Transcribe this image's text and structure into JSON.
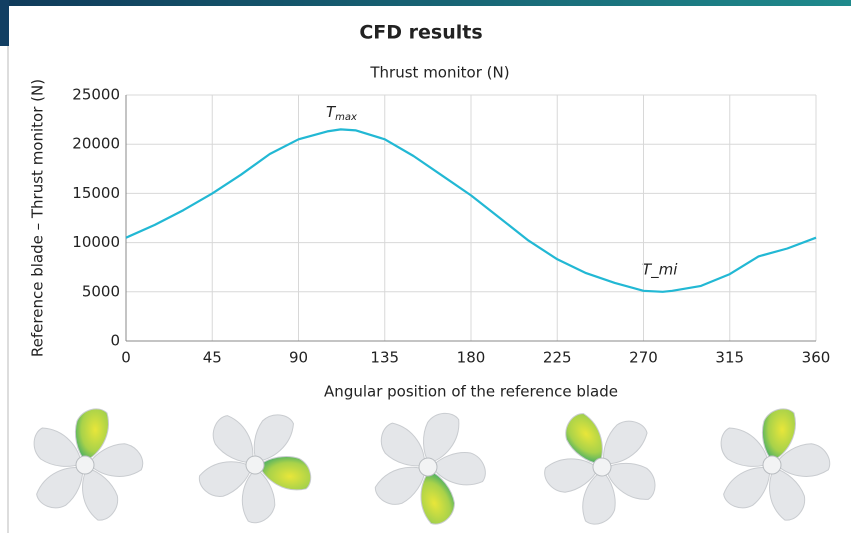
{
  "chart_data": {
    "type": "line",
    "title": "CFD results",
    "subtitle": "Thrust monitor (N)",
    "x_label": "Angular position of the reference blade",
    "y_label": "Reference blade – Thrust monitor (N)",
    "x": [
      0,
      15,
      30,
      45,
      60,
      75,
      90,
      105,
      112,
      120,
      135,
      150,
      165,
      180,
      195,
      210,
      225,
      240,
      255,
      270,
      280,
      285,
      300,
      315,
      330,
      345,
      360
    ],
    "values": [
      10500,
      11800,
      13300,
      15000,
      16900,
      19000,
      20500,
      21300,
      21500,
      21400,
      20500,
      18800,
      16800,
      14800,
      12500,
      10200,
      8300,
      6900,
      5900,
      5100,
      5000,
      5100,
      5600,
      6800,
      8600,
      9400,
      10500
    ],
    "color": "#22b8d4",
    "xlim": [
      0,
      360
    ],
    "xticks": [
      0,
      45,
      90,
      135,
      180,
      225,
      270,
      315,
      360
    ],
    "ylim": [
      0,
      25000
    ],
    "yticks": [
      0,
      5000,
      10000,
      15000,
      20000,
      25000
    ],
    "grid": true,
    "annotations": [
      {
        "text": "T",
        "subscript": "max"
      },
      {
        "text": "T_mi"
      }
    ]
  }
}
